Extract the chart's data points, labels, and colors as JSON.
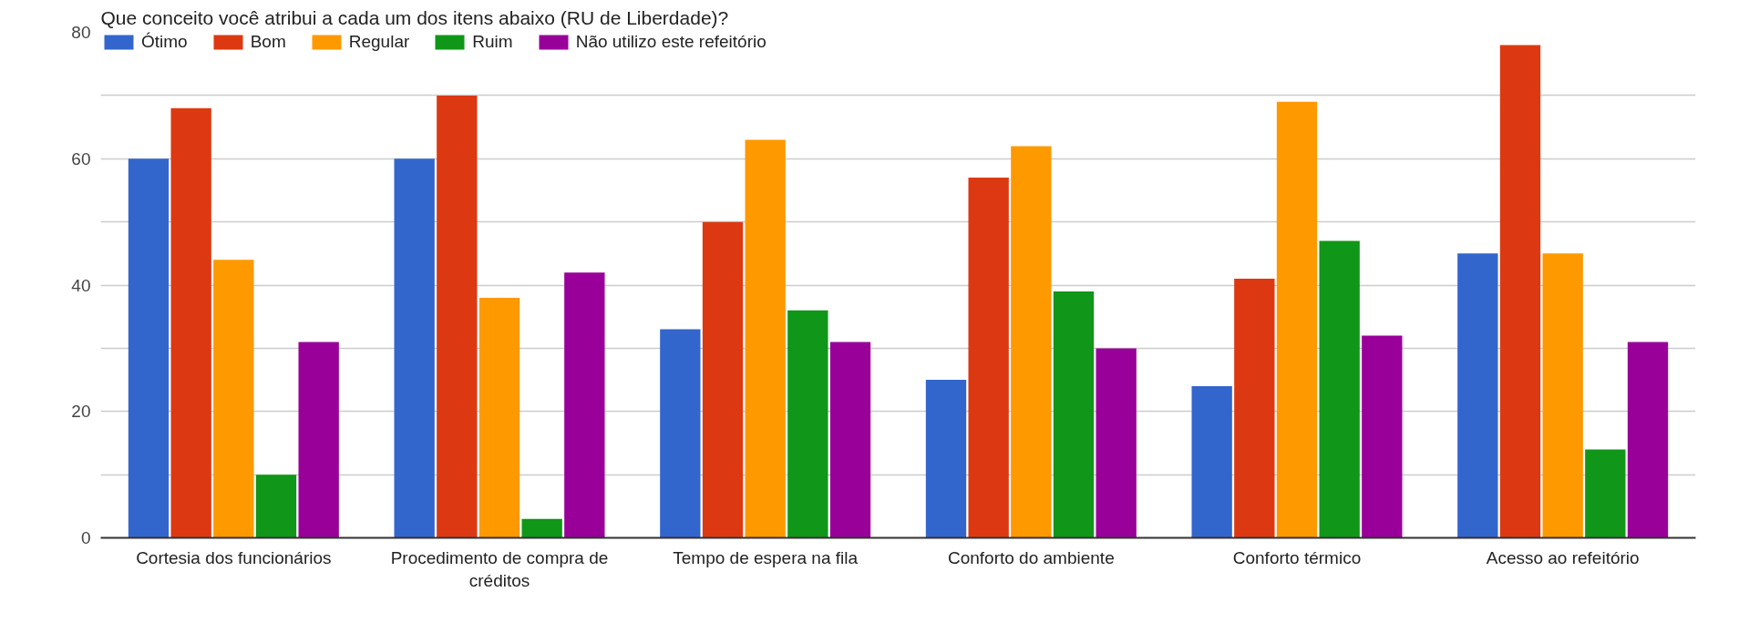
{
  "chart_data": {
    "type": "bar",
    "title": "Que conceito você atribui a cada um dos itens abaixo (RU de Liberdade)?",
    "categories": [
      "Cortesia dos funcionários",
      "Procedimento de compra de créditos",
      "Tempo de espera na fila",
      "Conforto do ambiente",
      "Conforto térmico",
      "Acesso ao refeitório"
    ],
    "series": [
      {
        "name": "Ótimo",
        "color": "#3366cc",
        "values": [
          60,
          60,
          33,
          25,
          24,
          45
        ]
      },
      {
        "name": "Bom",
        "color": "#dc3912",
        "values": [
          68,
          70,
          50,
          57,
          41,
          78
        ]
      },
      {
        "name": "Regular",
        "color": "#ff9900",
        "values": [
          44,
          38,
          63,
          62,
          69,
          45
        ]
      },
      {
        "name": "Ruim",
        "color": "#109618",
        "values": [
          10,
          3,
          36,
          39,
          47,
          14
        ]
      },
      {
        "name": "Não utilizo este refeitório",
        "color": "#990099",
        "values": [
          31,
          42,
          31,
          30,
          32,
          31
        ]
      }
    ],
    "ylim": [
      0,
      80
    ],
    "yticks": [
      0,
      {
        "value": 10,
        "label": null
      },
      20,
      {
        "value": 30,
        "label": null
      },
      40,
      {
        "value": 50,
        "label": null
      },
      60,
      {
        "value": 70,
        "label": null
      },
      80
    ],
    "grid": "y",
    "legend": "top left"
  }
}
